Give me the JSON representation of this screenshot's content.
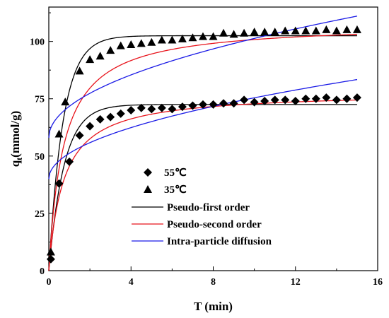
{
  "chart_data": {
    "type": "scatter",
    "xlabel": "T (min)",
    "ylabel": "qt(mmol/g)",
    "ylabel_main": "q",
    "ylabel_sub": "t",
    "ylabel_rest": "(mmol/g)",
    "xlim": [
      0,
      16
    ],
    "ylim": [
      0,
      115
    ],
    "x_ticks": [
      0,
      4,
      8,
      12,
      16
    ],
    "y_ticks": [
      0,
      25,
      50,
      75,
      100
    ],
    "x_tick_labels": [
      "0",
      "4",
      "8",
      "12",
      "16"
    ],
    "y_tick_labels": [
      "0",
      "25",
      "50",
      "75",
      "100"
    ],
    "grid": false,
    "legend_position": "lower-left",
    "series": [
      {
        "name": "55℃",
        "marker": "diamond",
        "color": "#000000",
        "points": [
          [
            0.1,
            5
          ],
          [
            0.5,
            38
          ],
          [
            1.0,
            47.5
          ],
          [
            1.5,
            59
          ],
          [
            2.0,
            63
          ],
          [
            2.5,
            66
          ],
          [
            3.0,
            67
          ],
          [
            3.5,
            68.5
          ],
          [
            4.0,
            70
          ],
          [
            4.5,
            71
          ],
          [
            5.0,
            70.5
          ],
          [
            5.5,
            71
          ],
          [
            6.0,
            70.5
          ],
          [
            6.5,
            71.5
          ],
          [
            7.0,
            72
          ],
          [
            7.5,
            72.5
          ],
          [
            8.0,
            72.5
          ],
          [
            8.5,
            73
          ],
          [
            9.0,
            73
          ],
          [
            9.5,
            74.5
          ],
          [
            10.0,
            73.5
          ],
          [
            10.5,
            74
          ],
          [
            11.0,
            74.5
          ],
          [
            11.5,
            74.5
          ],
          [
            12.0,
            74
          ],
          [
            12.5,
            75
          ],
          [
            13.0,
            75
          ],
          [
            13.5,
            75.5
          ],
          [
            14.0,
            74.5
          ],
          [
            14.5,
            75
          ],
          [
            15.0,
            75.5
          ]
        ]
      },
      {
        "name": "35℃",
        "marker": "triangle",
        "color": "#000000",
        "points": [
          [
            0.1,
            8
          ],
          [
            0.5,
            59.5
          ],
          [
            0.8,
            73.5
          ],
          [
            1.5,
            87
          ],
          [
            2.0,
            92
          ],
          [
            2.5,
            93.5
          ],
          [
            3.0,
            96
          ],
          [
            3.5,
            98
          ],
          [
            4.0,
            98.5
          ],
          [
            4.5,
            99
          ],
          [
            5.0,
            99.5
          ],
          [
            5.5,
            100.5
          ],
          [
            6.0,
            100.5
          ],
          [
            6.5,
            101
          ],
          [
            7.0,
            101.5
          ],
          [
            7.5,
            102
          ],
          [
            8.0,
            102
          ],
          [
            8.5,
            103.5
          ],
          [
            9.0,
            103
          ],
          [
            9.5,
            103.5
          ],
          [
            10.0,
            104
          ],
          [
            10.5,
            104
          ],
          [
            11.0,
            104
          ],
          [
            11.5,
            104.5
          ],
          [
            12.0,
            104.5
          ],
          [
            12.5,
            104.5
          ],
          [
            13.0,
            104.5
          ],
          [
            13.5,
            105
          ],
          [
            14.0,
            104.5
          ],
          [
            14.5,
            105
          ],
          [
            15.0,
            105
          ]
        ]
      },
      {
        "name": "Pseudo-first order",
        "line": true,
        "color": "#000000",
        "model": "pfo",
        "curves": [
          {
            "qe": 72.5,
            "k": 1.35
          },
          {
            "qe": 102.5,
            "k": 1.45
          }
        ]
      },
      {
        "name": "Pseudo-second order",
        "line": true,
        "color": "#e8141c",
        "model": "pso",
        "curves": [
          {
            "qe": 78,
            "k": 0.018
          },
          {
            "qe": 108,
            "k": 0.013
          }
        ]
      },
      {
        "name": "Intra-particle diffusion",
        "line": true,
        "color": "#1a1ae6",
        "model": "ipd",
        "curves": [
          {
            "kid": 11.2,
            "c": 40
          },
          {
            "kid": 13.7,
            "c": 58
          }
        ]
      }
    ]
  }
}
